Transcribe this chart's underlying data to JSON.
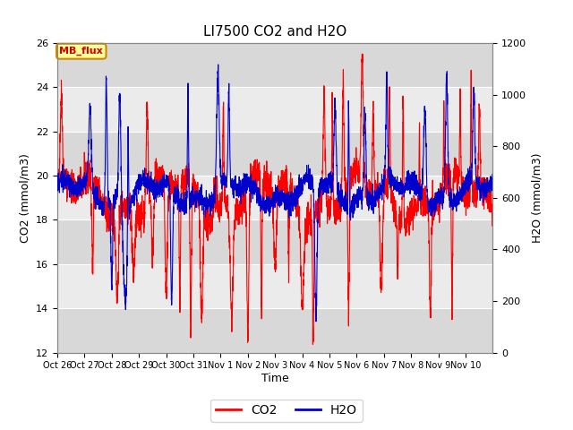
{
  "title": "LI7500 CO2 and H2O",
  "xlabel": "Time",
  "ylabel_left": "CO2 (mmol/m3)",
  "ylabel_right": "H2O (mmol/m3)",
  "ylim_left": [
    12,
    26
  ],
  "ylim_right": [
    0,
    1200
  ],
  "yticks_left": [
    12,
    14,
    16,
    18,
    20,
    22,
    24,
    26
  ],
  "yticks_right": [
    0,
    200,
    400,
    600,
    800,
    1000,
    1200
  ],
  "xtick_labels": [
    "Oct 26",
    "Oct 27",
    "Oct 28",
    "Oct 29",
    "Oct 30",
    "Oct 31",
    "Nov 1",
    "Nov 2",
    "Nov 3",
    "Nov 4",
    "Nov 5",
    "Nov 6",
    "Nov 7",
    "Nov 8",
    "Nov 9",
    "Nov 10"
  ],
  "co2_color": "#FF0000",
  "h2o_color": "#0000CD",
  "legend_label_co2": "CO2",
  "legend_label_h2o": "H2O",
  "annotation_text": "MB_flux",
  "annotation_bg": "#FFFF99",
  "annotation_border": "#CC8800",
  "band_colors": [
    "#D8D8D8",
    "#EBEBEB"
  ],
  "fig_bg": "#FFFFFF",
  "grid_color": "#FFFFFF",
  "linewidth": 0.8,
  "seed": 42,
  "n_points": 3360,
  "n_days": 16
}
